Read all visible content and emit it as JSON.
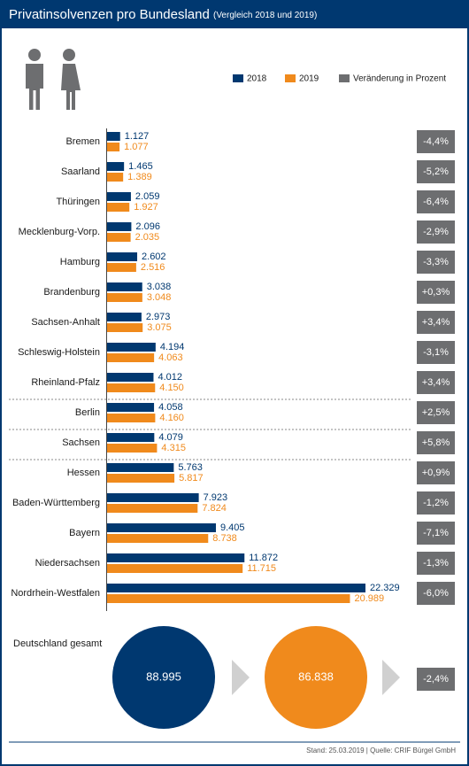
{
  "chart_data": {
    "type": "bar",
    "title": "Privatinsolvenzen pro Bundesland",
    "subtitle": "(Vergleich 2018 und 2019)",
    "categories": [
      "Bremen",
      "Saarland",
      "Thüringen",
      "Mecklenburg-Vorp.",
      "Hamburg",
      "Brandenburg",
      "Sachsen-Anhalt",
      "Schleswig-Holstein",
      "Rheinland-Pfalz",
      "Berlin",
      "Sachsen",
      "Hessen",
      "Baden-Württemberg",
      "Bayern",
      "Niedersachsen",
      "Nordrhein-Westfalen"
    ],
    "series": [
      {
        "name": "2018",
        "color": "#003870",
        "values": [
          1127,
          1465,
          2059,
          2096,
          2602,
          3038,
          2973,
          4194,
          4012,
          4058,
          4079,
          5763,
          7923,
          9405,
          11872,
          22329
        ],
        "value_labels": [
          "1.127",
          "1.465",
          "2.059",
          "2.096",
          "2.602",
          "3.038",
          "2.973",
          "4.194",
          "4.012",
          "4.058",
          "4.079",
          "5.763",
          "7.923",
          "9.405",
          "11.872",
          "22.329"
        ]
      },
      {
        "name": "2019",
        "color": "#f08a1c",
        "values": [
          1077,
          1389,
          1927,
          2035,
          2516,
          3048,
          3075,
          4063,
          4150,
          4160,
          4315,
          5817,
          7824,
          8738,
          11715,
          20989
        ],
        "value_labels": [
          "1.077",
          "1.389",
          "1.927",
          "2.035",
          "2.516",
          "3.048",
          "3.075",
          "4.063",
          "4.150",
          "4.160",
          "4.315",
          "5.817",
          "7.824",
          "8.738",
          "11.715",
          "20.989"
        ]
      },
      {
        "name": "Veränderung in Prozent",
        "color": "#6d6e70",
        "values": [
          -4.4,
          -5.2,
          -6.4,
          -2.9,
          -3.3,
          0.3,
          3.4,
          -3.1,
          3.4,
          2.5,
          5.8,
          0.9,
          -1.2,
          -7.1,
          -1.3,
          -6.0
        ],
        "value_labels": [
          "-4,4%",
          "-5,2%",
          "-6,4%",
          "-2,9%",
          "-3,3%",
          "+0,3%",
          "+3,4%",
          "-3,1%",
          "+3,4%",
          "+2,5%",
          "+5,8%",
          "+0,9%",
          "-1,2%",
          "-7,1%",
          "-1,3%",
          "-6,0%"
        ]
      }
    ],
    "total": {
      "label": "Deutschland gesamt",
      "values": [
        88995,
        86838
      ],
      "value_labels": [
        "88.995",
        "86.838"
      ],
      "change": -2.4,
      "change_label": "-2,4%"
    },
    "source": "Stand: 25.03.2019 | Quelle: CRIF Bürgel GmbH"
  }
}
